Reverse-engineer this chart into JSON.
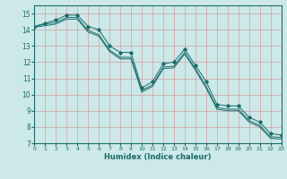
{
  "title": "",
  "xlabel": "Humidex (Indice chaleur)",
  "background_color": "#cce8e8",
  "grid_color": "#aad4d4",
  "line_color": "#1a6b6b",
  "x": [
    0,
    1,
    2,
    3,
    4,
    5,
    6,
    7,
    8,
    9,
    10,
    11,
    12,
    13,
    14,
    15,
    16,
    17,
    18,
    19,
    20,
    21,
    22,
    23
  ],
  "line1": [
    14.2,
    14.4,
    14.6,
    14.9,
    14.9,
    14.2,
    14.0,
    13.0,
    12.6,
    12.6,
    10.4,
    10.8,
    11.9,
    12.0,
    12.8,
    11.8,
    10.8,
    9.4,
    9.3,
    9.3,
    8.6,
    8.3,
    7.6,
    7.5
  ],
  "line2": [
    14.2,
    14.35,
    14.45,
    14.75,
    14.75,
    13.95,
    13.7,
    12.75,
    12.3,
    12.3,
    10.25,
    10.6,
    11.7,
    11.75,
    12.6,
    11.6,
    10.5,
    9.2,
    9.1,
    9.1,
    8.4,
    8.1,
    7.4,
    7.35
  ],
  "line3": [
    14.15,
    14.25,
    14.35,
    14.65,
    14.65,
    13.85,
    13.6,
    12.65,
    12.2,
    12.2,
    10.15,
    10.5,
    11.6,
    11.65,
    12.5,
    11.5,
    10.4,
    9.1,
    9.0,
    9.0,
    8.3,
    8.0,
    7.3,
    7.25
  ],
  "xlim": [
    0,
    23
  ],
  "ylim": [
    7,
    15.5
  ],
  "yticks": [
    7,
    8,
    9,
    10,
    11,
    12,
    13,
    14,
    15
  ],
  "xticks": [
    0,
    1,
    2,
    3,
    4,
    5,
    6,
    7,
    8,
    9,
    10,
    11,
    12,
    13,
    14,
    15,
    16,
    17,
    18,
    19,
    20,
    21,
    22,
    23
  ]
}
